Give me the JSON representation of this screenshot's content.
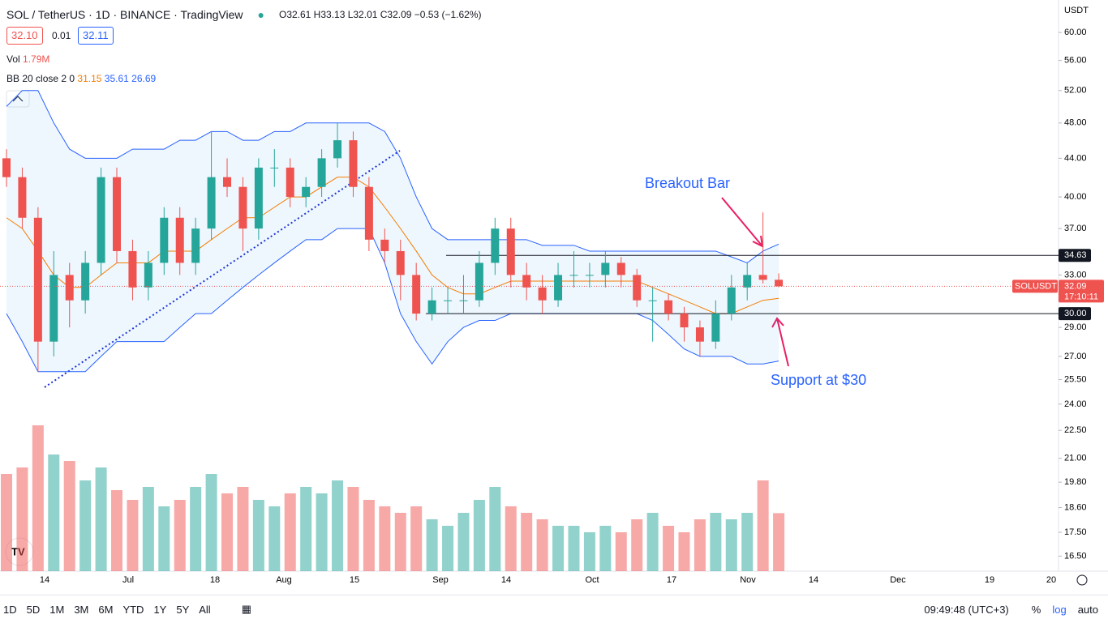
{
  "header": {
    "symbol": "SOL / TetherUS · 1D · BINANCE · TradingView",
    "ohlc": "O32.61 H33.13 L32.01 C32.09 −0.53 (−1.62%)",
    "sell": "32.10",
    "spread": "0.01",
    "buy": "32.11",
    "vol_label": "Vol",
    "vol_value": "1.79M",
    "bb_label": "BB 20 close 2 0",
    "bb_mid": "31.15",
    "bb_upper": "35.61",
    "bb_lower": "26.69"
  },
  "chart_data": {
    "type": "candlestick",
    "ylim": [
      15.9,
      65
    ],
    "log": true,
    "currency": "USDT",
    "yticks": [
      {
        "value": 60,
        "label": "60.00"
      },
      {
        "value": 56,
        "label": "56.00"
      },
      {
        "value": 52,
        "label": "52.00"
      },
      {
        "value": 48,
        "label": "48.00"
      },
      {
        "value": 44,
        "label": "44.00"
      },
      {
        "value": 40,
        "label": "40.00"
      },
      {
        "value": 37,
        "label": "37.00"
      },
      {
        "value": 33,
        "label": "33.00"
      },
      {
        "value": 29,
        "label": "29.00"
      },
      {
        "value": 27,
        "label": "27.00"
      },
      {
        "value": 25.5,
        "label": "25.50"
      },
      {
        "value": 24,
        "label": "24.00"
      },
      {
        "value": 22.5,
        "label": "22.50"
      },
      {
        "value": 21,
        "label": "21.00"
      },
      {
        "value": 19.8,
        "label": "19.80"
      },
      {
        "value": 18.6,
        "label": "18.60"
      },
      {
        "value": 17.5,
        "label": "17.50"
      },
      {
        "value": 16.5,
        "label": "16.50"
      }
    ],
    "xticks": [
      "14",
      "Jul",
      "18",
      "Aug",
      "15",
      "Sep",
      "14",
      "Oct",
      "17",
      "Nov",
      "14",
      "Dec",
      "19",
      "20"
    ],
    "candles": [
      [
        44,
        45,
        41,
        42
      ],
      [
        42,
        43,
        37,
        38
      ],
      [
        38,
        39,
        26,
        28
      ],
      [
        28,
        35,
        27,
        33
      ],
      [
        33,
        34,
        29,
        31
      ],
      [
        31,
        35,
        30,
        34
      ],
      [
        34,
        43,
        33,
        42
      ],
      [
        42,
        43,
        34,
        35
      ],
      [
        35,
        36,
        31,
        32
      ],
      [
        32,
        35,
        31,
        34
      ],
      [
        34,
        39,
        33,
        38
      ],
      [
        38,
        39,
        33,
        34
      ],
      [
        34,
        38,
        33,
        37
      ],
      [
        37,
        47,
        36,
        42
      ],
      [
        42,
        44,
        40,
        41
      ],
      [
        41,
        42,
        35,
        37
      ],
      [
        37,
        44,
        36,
        43
      ],
      [
        43,
        45,
        41,
        43
      ],
      [
        43,
        44,
        39,
        40
      ],
      [
        40,
        42,
        39,
        41
      ],
      [
        41,
        45,
        40,
        44
      ],
      [
        44,
        48,
        43,
        46
      ],
      [
        46,
        47,
        40,
        41
      ],
      [
        41,
        42,
        35,
        36
      ],
      [
        36,
        37,
        34,
        35
      ],
      [
        35,
        36,
        31,
        33
      ],
      [
        33,
        34,
        29.5,
        30
      ],
      [
        30,
        32,
        29.5,
        31
      ],
      [
        31,
        32,
        30,
        31
      ],
      [
        31,
        33,
        30,
        31
      ],
      [
        31,
        35,
        30.5,
        34
      ],
      [
        34,
        38,
        33,
        37
      ],
      [
        37,
        38,
        32,
        33
      ],
      [
        33,
        34,
        31,
        32
      ],
      [
        32,
        33,
        30,
        31
      ],
      [
        31,
        34,
        30.5,
        33
      ],
      [
        33,
        35,
        32,
        33
      ],
      [
        33,
        34,
        32,
        33
      ],
      [
        33,
        35,
        32,
        34
      ],
      [
        34,
        34.5,
        32,
        33
      ],
      [
        33,
        33.5,
        30.5,
        31
      ],
      [
        31,
        32,
        28,
        31
      ],
      [
        31,
        31.5,
        29.5,
        30
      ],
      [
        30,
        30.5,
        28,
        29
      ],
      [
        29,
        29.5,
        27,
        28
      ],
      [
        28,
        31,
        27.5,
        30
      ],
      [
        30,
        33,
        29.5,
        32
      ],
      [
        32,
        34,
        31,
        33
      ],
      [
        33,
        38.5,
        32.3,
        32.61
      ],
      [
        32.61,
        33.13,
        32.01,
        32.09
      ]
    ],
    "volume": {
      "vlim": [
        0,
        5
      ],
      "values": [
        3,
        3.2,
        4.5,
        3.6,
        3.4,
        2.8,
        3.2,
        2.5,
        2.2,
        2.6,
        2,
        2.2,
        2.6,
        3,
        2.4,
        2.6,
        2.2,
        2,
        2.4,
        2.6,
        2.4,
        2.8,
        2.6,
        2.2,
        2,
        1.8,
        2,
        1.6,
        1.4,
        1.8,
        2.2,
        2.6,
        2,
        1.8,
        1.6,
        1.4,
        1.4,
        1.2,
        1.4,
        1.2,
        1.6,
        1.8,
        1.4,
        1.2,
        1.6,
        1.8,
        1.6,
        1.8,
        2.8,
        1.79
      ]
    },
    "bb": {
      "mid": [
        38,
        37,
        35,
        33,
        32,
        32,
        33,
        34,
        34,
        34,
        35,
        35,
        35,
        36,
        37,
        38,
        38,
        39,
        40,
        40,
        41,
        42,
        42,
        41,
        39,
        37,
        35,
        33,
        32,
        31.5,
        31.5,
        32,
        32.5,
        32.5,
        32.5,
        32.5,
        32.5,
        32.5,
        32.5,
        32.5,
        32.5,
        32,
        31.5,
        31,
        30.5,
        30,
        30,
        30.5,
        31,
        31.15
      ],
      "upper": [
        50,
        52,
        52,
        48,
        45,
        44,
        44,
        44,
        45,
        45,
        45,
        46,
        46,
        47,
        47,
        46,
        46,
        47,
        47,
        48,
        48,
        48,
        48,
        48,
        47,
        44,
        40,
        37,
        36,
        36,
        36,
        36,
        36,
        36,
        35.5,
        35.5,
        35.5,
        35,
        35,
        35,
        35,
        35,
        35,
        35,
        35,
        35,
        34.5,
        34,
        35,
        35.61
      ],
      "lower": [
        30,
        28,
        26,
        26,
        26,
        26,
        27,
        28,
        28,
        28,
        28,
        29,
        30,
        30,
        31,
        32,
        33,
        34,
        35,
        36,
        36,
        37,
        37,
        37,
        34,
        30,
        28,
        26.5,
        28,
        29,
        29.5,
        29.5,
        30,
        30,
        30,
        30,
        30,
        30,
        30,
        30,
        30,
        29.5,
        28.5,
        27.5,
        27,
        27,
        27,
        26.5,
        26.5,
        26.69
      ]
    },
    "levels": [
      {
        "value": 34.63,
        "label": "34.63"
      },
      {
        "value": 30,
        "label": "30.00"
      }
    ],
    "last": {
      "value": 32.09,
      "label": "32.09",
      "symbol": "SOLUSDT",
      "countdown": "17:10:11"
    },
    "annotations": [
      "Breakout Bar",
      "Support at $30"
    ]
  },
  "toolbar": {
    "ranges": [
      "1D",
      "5D",
      "1M",
      "3M",
      "6M",
      "YTD",
      "1Y",
      "5Y",
      "All"
    ],
    "clock": "09:49:48 (UTC+3)",
    "percent": "%",
    "log": "log",
    "auto": "auto"
  }
}
